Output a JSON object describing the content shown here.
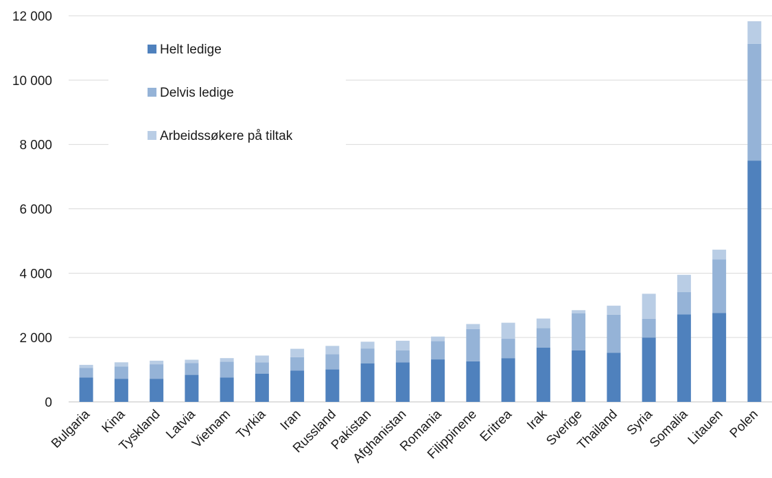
{
  "chart_data": {
    "type": "bar",
    "stacked": true,
    "categories": [
      "Bulgaria",
      "Kina",
      "Tyskland",
      "Latvia",
      "Vietnam",
      "Tyrkia",
      "Iran",
      "Russland",
      "Pakistan",
      "Afghanistan",
      "Romania",
      "Filippinene",
      "Eritrea",
      "Irak",
      "Sverige",
      "Thailand",
      "Syria",
      "Somalia",
      "Litauen",
      "Polen"
    ],
    "series": [
      {
        "name": "Helt ledige",
        "color": "#4f81bd",
        "values": [
          760,
          720,
          720,
          840,
          760,
          880,
          970,
          1010,
          1200,
          1230,
          1320,
          1260,
          1360,
          1690,
          1600,
          1530,
          2000,
          2720,
          2760,
          7500
        ]
      },
      {
        "name": "Delvis ledige",
        "color": "#95b3d7",
        "values": [
          300,
          380,
          450,
          370,
          490,
          350,
          420,
          470,
          460,
          370,
          570,
          1000,
          600,
          600,
          1150,
          1180,
          580,
          690,
          1670,
          3630
        ]
      },
      {
        "name": "Arbeidssøkere på tiltak",
        "color": "#b9cde5",
        "values": [
          90,
          130,
          110,
          100,
          110,
          210,
          260,
          260,
          210,
          300,
          140,
          160,
          500,
          300,
          100,
          280,
          780,
          540,
          300,
          700
        ]
      }
    ],
    "ylim": [
      0,
      12000
    ],
    "yticks": [
      0,
      2000,
      4000,
      6000,
      8000,
      10000,
      12000
    ],
    "ytick_labels": [
      "0",
      "2 000",
      "4 000",
      "6 000",
      "8 000",
      "10 000",
      "12 000"
    ],
    "grid": true,
    "legend_position": "top-left"
  }
}
